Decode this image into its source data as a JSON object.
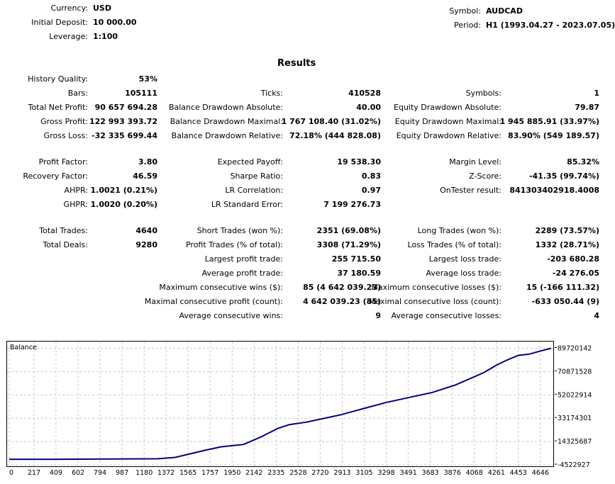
{
  "header": {
    "currency_label": "Currency:",
    "currency": "USD",
    "deposit_label": "Initial Deposit:",
    "deposit": "10 000.00",
    "leverage_label": "Leverage:",
    "leverage": "1:100",
    "symbol_label": "Symbol:",
    "symbol": "AUDCAD",
    "period_label": "Period:",
    "period": "H1 (1993.04.27 - 2023.07.05)"
  },
  "results_title": "Results",
  "stats": {
    "history_quality": {
      "label": "History Quality:",
      "value": "53%"
    },
    "bars": {
      "label": "Bars:",
      "value": "105111"
    },
    "ticks": {
      "label": "Ticks:",
      "value": "410528"
    },
    "symbols": {
      "label": "Symbols:",
      "value": "1"
    },
    "total_net_profit": {
      "label": "Total Net Profit:",
      "value": "90 657 694.28"
    },
    "balance_dd_abs": {
      "label": "Balance Drawdown Absolute:",
      "value": "40.00"
    },
    "equity_dd_abs": {
      "label": "Equity Drawdown Absolute:",
      "value": "79.87"
    },
    "gross_profit": {
      "label": "Gross Profit:",
      "value": "122 993 393.72"
    },
    "balance_dd_max": {
      "label": "Balance Drawdown Maximal:",
      "value": "1 767 108.40 (31.02%)"
    },
    "equity_dd_max": {
      "label": "Equity Drawdown Maximal:",
      "value": "1 945 885.91 (33.97%)"
    },
    "gross_loss": {
      "label": "Gross Loss:",
      "value": "-32 335 699.44"
    },
    "balance_dd_rel": {
      "label": "Balance Drawdown Relative:",
      "value": "72.18% (444 828.08)"
    },
    "equity_dd_rel": {
      "label": "Equity Drawdown Relative:",
      "value": "83.90% (549 189.57)"
    },
    "profit_factor": {
      "label": "Profit Factor:",
      "value": "3.80"
    },
    "expected_payoff": {
      "label": "Expected Payoff:",
      "value": "19 538.30"
    },
    "margin_level": {
      "label": "Margin Level:",
      "value": "85.32%"
    },
    "recovery_factor": {
      "label": "Recovery Factor:",
      "value": "46.59"
    },
    "sharpe_ratio": {
      "label": "Sharpe Ratio:",
      "value": "0.83"
    },
    "z_score": {
      "label": "Z-Score:",
      "value": "-41.35 (99.74%)"
    },
    "ahpr": {
      "label": "AHPR:",
      "value": "1.0021 (0.21%)"
    },
    "lr_correlation": {
      "label": "LR Correlation:",
      "value": "0.97"
    },
    "ontester": {
      "label": "OnTester result:",
      "value": "841303402918.4008"
    },
    "ghpr": {
      "label": "GHPR:",
      "value": "1.0020 (0.20%)"
    },
    "lr_std_error": {
      "label": "LR Standard Error:",
      "value": "7 199 276.73"
    },
    "total_trades": {
      "label": "Total Trades:",
      "value": "4640"
    },
    "short_trades": {
      "label": "Short Trades (won %):",
      "value": "2351 (69.08%)"
    },
    "long_trades": {
      "label": "Long Trades (won %):",
      "value": "2289 (73.57%)"
    },
    "total_deals": {
      "label": "Total Deals:",
      "value": "9280"
    },
    "profit_trades": {
      "label": "Profit Trades (% of total):",
      "value": "3308 (71.29%)"
    },
    "loss_trades": {
      "label": "Loss Trades (% of total):",
      "value": "1332 (28.71%)"
    },
    "largest_profit": {
      "label": "Largest profit trade:",
      "value": "255 715.50"
    },
    "largest_loss": {
      "label": "Largest loss trade:",
      "value": "-203 680.28"
    },
    "avg_profit": {
      "label": "Average profit trade:",
      "value": "37 180.59"
    },
    "avg_loss": {
      "label": "Average loss trade:",
      "value": "-24 276.05"
    },
    "max_consec_wins": {
      "label": "Maximum consecutive wins ($):",
      "value": "85 (4 642 039.23)"
    },
    "max_consec_losses": {
      "label": "Maximum consecutive losses ($):",
      "value": "15 (-166 111.32)"
    },
    "maximal_consec_profit": {
      "label": "Maximal consecutive profit (count):",
      "value": "4 642 039.23 (85)"
    },
    "maximal_consec_loss": {
      "label": "Maximal consecutive loss (count):",
      "value": "-633 050.44 (9)"
    },
    "avg_consec_wins": {
      "label": "Average consecutive wins:",
      "value": "9"
    },
    "avg_consec_losses": {
      "label": "Average consecutive losses:",
      "value": "4"
    }
  },
  "chart_data": {
    "type": "line",
    "title": "Balance",
    "xlabel": "",
    "ylabel": "",
    "xlim": [
      0,
      4740
    ],
    "ylim": [
      -4522927,
      94000000
    ],
    "x_ticks": [
      "0",
      "217",
      "409",
      "602",
      "794",
      "987",
      "1180",
      "1372",
      "1565",
      "1757",
      "1950",
      "2142",
      "2335",
      "2528",
      "2720",
      "2913",
      "3105",
      "3298",
      "3491",
      "3683",
      "3876",
      "4068",
      "4261",
      "4453",
      "4646"
    ],
    "y_ticks": [
      "89720142",
      "70871528",
      "52022914",
      "33174301",
      "14325687",
      "-4522927"
    ],
    "y_tick_values": [
      89720142,
      70871528,
      52022914,
      33174301,
      14325687,
      -4522927
    ],
    "grid": true,
    "line_color": "#000080",
    "series": [
      {
        "name": "Balance",
        "x": [
          0,
          200,
          400,
          700,
          1000,
          1300,
          1450,
          1565,
          1700,
          1850,
          1950,
          2050,
          2200,
          2350,
          2450,
          2600,
          2750,
          2900,
          3100,
          3300,
          3500,
          3700,
          3900,
          4050,
          4150,
          4261,
          4350,
          4453,
          4550,
          4646,
          4740
        ],
        "y": [
          0,
          0,
          0,
          100000,
          300000,
          400000,
          1500000,
          4000000,
          7000000,
          10000000,
          11000000,
          12000000,
          18000000,
          25000000,
          28000000,
          30000000,
          33000000,
          36000000,
          41000000,
          46000000,
          50000000,
          54000000,
          60000000,
          66000000,
          70000000,
          76000000,
          80000000,
          84000000,
          85000000,
          87500000,
          89720142
        ]
      }
    ]
  }
}
